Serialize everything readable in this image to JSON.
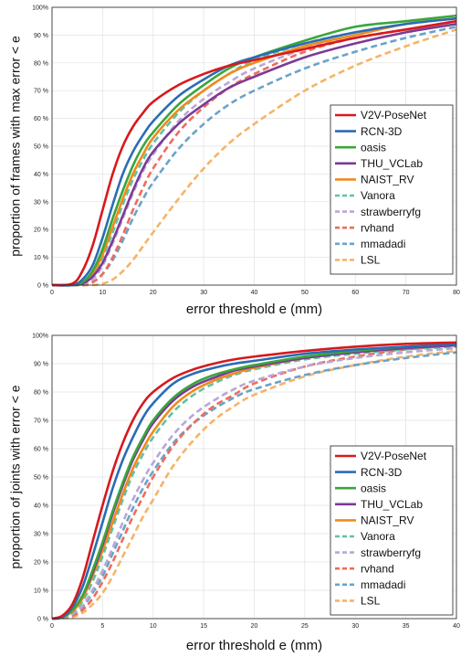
{
  "chart_data": [
    {
      "type": "line",
      "title": "",
      "xlabel": "error threshold e (mm)",
      "ylabel": "proportion of frames with max error < e",
      "xlim": [
        0,
        80
      ],
      "ylim": [
        0,
        100
      ],
      "xticks": [
        "0",
        "10",
        "20",
        "30",
        "40",
        "50",
        "60",
        "70",
        "80"
      ],
      "yticks": [
        "0 %",
        "10 %",
        "20 %",
        "30 %",
        "40 %",
        "50 %",
        "60 %",
        "70 %",
        "80 %",
        "90 %",
        "100%"
      ],
      "grid": true,
      "legend_position": "bottom-right",
      "series": [
        {
          "name": "V2V-PoseNet",
          "color": "#d7191c",
          "dash": "solid",
          "x": [
            0,
            4,
            6,
            8,
            10,
            12,
            14,
            16,
            18,
            20,
            25,
            30,
            35,
            40,
            50,
            60,
            70,
            80
          ],
          "y": [
            0,
            0.5,
            5,
            14,
            27,
            40,
            50,
            57,
            62,
            66,
            72,
            76,
            79,
            81,
            85,
            89,
            92,
            95
          ]
        },
        {
          "name": "RCN-3D",
          "color": "#2b6cb5",
          "dash": "solid",
          "x": [
            0,
            4,
            6,
            8,
            10,
            12,
            14,
            16,
            18,
            20,
            25,
            30,
            35,
            40,
            50,
            60,
            70,
            80
          ],
          "y": [
            0,
            0,
            2,
            7,
            17,
            29,
            40,
            48,
            54,
            59,
            68,
            74,
            79,
            82,
            87,
            91,
            94,
            96
          ]
        },
        {
          "name": "oasis",
          "color": "#3aa63a",
          "dash": "solid",
          "x": [
            0,
            4,
            6,
            8,
            10,
            12,
            14,
            16,
            18,
            20,
            25,
            30,
            35,
            40,
            50,
            60,
            70,
            80
          ],
          "y": [
            0,
            0,
            1,
            5,
            13,
            24,
            34,
            43,
            50,
            55,
            65,
            72,
            78,
            82,
            88,
            93,
            95,
            97
          ]
        },
        {
          "name": "THU_VCLab",
          "color": "#7b3a96",
          "dash": "solid",
          "x": [
            0,
            4,
            6,
            8,
            10,
            12,
            14,
            16,
            18,
            20,
            25,
            30,
            35,
            40,
            50,
            60,
            70,
            80
          ],
          "y": [
            0,
            0,
            0.5,
            3,
            8,
            16,
            25,
            34,
            42,
            48,
            58,
            65,
            71,
            75,
            82,
            87,
            91,
            94
          ]
        },
        {
          "name": "NAIST_RV",
          "color": "#f08a1c",
          "dash": "solid",
          "x": [
            0,
            4,
            6,
            8,
            10,
            12,
            14,
            16,
            18,
            20,
            25,
            30,
            35,
            40,
            50,
            60,
            70,
            80
          ],
          "y": [
            0,
            0,
            0.5,
            4,
            11,
            21,
            31,
            40,
            47,
            53,
            63,
            70,
            76,
            80,
            86,
            90,
            94,
            96
          ]
        },
        {
          "name": "Vanora",
          "color": "#5fc3a6",
          "dash": "dash",
          "x": [
            0,
            4,
            6,
            8,
            10,
            12,
            14,
            16,
            18,
            20,
            25,
            30,
            35,
            40,
            50,
            60,
            70,
            80
          ],
          "y": [
            0,
            0,
            0.5,
            4,
            10,
            19,
            29,
            38,
            45,
            51,
            62,
            70,
            76,
            81,
            87,
            91,
            94,
            96
          ]
        },
        {
          "name": "strawberryfg",
          "color": "#b9a7d6",
          "dash": "dash",
          "x": [
            0,
            4,
            6,
            8,
            10,
            12,
            14,
            16,
            18,
            20,
            25,
            30,
            35,
            40,
            50,
            60,
            70,
            80
          ],
          "y": [
            0,
            0,
            0.3,
            2,
            7,
            15,
            24,
            33,
            41,
            47,
            59,
            67,
            73,
            78,
            85,
            89,
            92,
            95
          ]
        },
        {
          "name": "rvhand",
          "color": "#ef6b5b",
          "dash": "dash",
          "x": [
            0,
            4,
            6,
            8,
            10,
            12,
            14,
            16,
            18,
            20,
            25,
            30,
            35,
            40,
            50,
            60,
            70,
            80
          ],
          "y": [
            0,
            0,
            0,
            1,
            4,
            10,
            18,
            27,
            35,
            42,
            55,
            64,
            71,
            76,
            84,
            89,
            92,
            95
          ]
        },
        {
          "name": "mmadadi",
          "color": "#6aa3c8",
          "dash": "dash",
          "x": [
            0,
            4,
            6,
            8,
            10,
            12,
            14,
            16,
            18,
            20,
            25,
            30,
            35,
            40,
            50,
            60,
            70,
            80
          ],
          "y": [
            0,
            0,
            0,
            1,
            4,
            9,
            16,
            24,
            31,
            37,
            49,
            58,
            65,
            70,
            78,
            84,
            89,
            93
          ]
        },
        {
          "name": "LSL",
          "color": "#f5b466",
          "dash": "dash",
          "x": [
            0,
            4,
            6,
            8,
            10,
            12,
            14,
            16,
            18,
            20,
            25,
            30,
            35,
            40,
            50,
            60,
            70,
            80
          ],
          "y": [
            0,
            0,
            0,
            0,
            0.5,
            2,
            5,
            9,
            14,
            19,
            31,
            42,
            51,
            58,
            70,
            79,
            86,
            92
          ]
        }
      ]
    },
    {
      "type": "line",
      "title": "",
      "xlabel": "error threshold e (mm)",
      "ylabel": "proportion of joints with error < e",
      "xlim": [
        0,
        40
      ],
      "ylim": [
        0,
        100
      ],
      "xticks": [
        "0",
        "5",
        "10",
        "15",
        "20",
        "25",
        "30",
        "35",
        "40"
      ],
      "yticks": [
        "0 %",
        "10 %",
        "20 %",
        "30 %",
        "40 %",
        "50 %",
        "60 %",
        "70 %",
        "80 %",
        "90 %",
        "100%"
      ],
      "grid": true,
      "legend_position": "bottom-right",
      "series": [
        {
          "name": "V2V-PoseNet",
          "color": "#d7191c",
          "dash": "solid",
          "x": [
            0,
            1,
            2,
            3,
            4,
            5,
            6,
            7,
            8,
            9,
            10,
            12,
            14,
            16,
            18,
            20,
            25,
            30,
            35,
            40
          ],
          "y": [
            0,
            1,
            5,
            14,
            27,
            40,
            52,
            62,
            70,
            76,
            80,
            85,
            88,
            90,
            91.5,
            92.5,
            94.5,
            96,
            97,
            97.5
          ]
        },
        {
          "name": "RCN-3D",
          "color": "#2b6cb5",
          "dash": "solid",
          "x": [
            0,
            1,
            2,
            3,
            4,
            5,
            6,
            7,
            8,
            9,
            10,
            12,
            14,
            16,
            18,
            20,
            25,
            30,
            35,
            40
          ],
          "y": [
            0,
            0.5,
            4,
            11,
            22,
            34,
            46,
            56,
            64,
            71,
            76,
            83,
            86.5,
            88.5,
            90,
            91,
            93.5,
            95,
            96,
            97
          ]
        },
        {
          "name": "oasis",
          "color": "#3aa63a",
          "dash": "solid",
          "x": [
            0,
            1,
            2,
            3,
            4,
            5,
            6,
            7,
            8,
            9,
            10,
            12,
            14,
            16,
            18,
            20,
            25,
            30,
            35,
            40
          ],
          "y": [
            0,
            0.5,
            3,
            8,
            17,
            27,
            38,
            48,
            57,
            64,
            70,
            78,
            83,
            86,
            88,
            89.5,
            92.5,
            94.5,
            96,
            97
          ]
        },
        {
          "name": "THU_VCLab",
          "color": "#7b3a96",
          "dash": "solid",
          "x": [
            0,
            1,
            2,
            3,
            4,
            5,
            6,
            7,
            8,
            9,
            10,
            12,
            14,
            16,
            18,
            20,
            25,
            30,
            35,
            40
          ],
          "y": [
            0,
            0.5,
            3,
            8,
            16,
            26,
            37,
            47,
            56,
            63,
            69,
            77,
            82,
            85,
            87.5,
            89,
            92,
            94,
            95.5,
            96.5
          ]
        },
        {
          "name": "NAIST_RV",
          "color": "#f08a1c",
          "dash": "solid",
          "x": [
            0,
            1,
            2,
            3,
            4,
            5,
            6,
            7,
            8,
            9,
            10,
            12,
            14,
            16,
            18,
            20,
            25,
            30,
            35,
            40
          ],
          "y": [
            0,
            0.5,
            2.5,
            7,
            15,
            24,
            34,
            44,
            53,
            60,
            66,
            75,
            80.5,
            84,
            86.5,
            88.5,
            92,
            94,
            95.5,
            96.5
          ]
        },
        {
          "name": "Vanora",
          "color": "#5fc3a6",
          "dash": "dash",
          "x": [
            0,
            1,
            2,
            3,
            4,
            5,
            6,
            7,
            8,
            9,
            10,
            12,
            14,
            16,
            18,
            20,
            25,
            30,
            35,
            40
          ],
          "y": [
            0,
            0.3,
            2,
            6,
            13,
            22,
            32,
            42,
            51,
            58,
            64,
            73,
            79,
            83,
            86,
            88,
            91.5,
            93.5,
            95,
            96
          ]
        },
        {
          "name": "strawberryfg",
          "color": "#b9a7d6",
          "dash": "dash",
          "x": [
            0,
            1,
            2,
            3,
            4,
            5,
            6,
            7,
            8,
            9,
            10,
            12,
            14,
            16,
            18,
            20,
            25,
            30,
            35,
            40
          ],
          "y": [
            0,
            0.3,
            1.5,
            4.5,
            10,
            17,
            25,
            34,
            42,
            49,
            55,
            65,
            72,
            77,
            81,
            84,
            89,
            92,
            94,
            95.5
          ]
        },
        {
          "name": "rvhand",
          "color": "#ef6b5b",
          "dash": "dash",
          "x": [
            0,
            1,
            2,
            3,
            4,
            5,
            6,
            7,
            8,
            9,
            10,
            12,
            14,
            16,
            18,
            20,
            25,
            30,
            35,
            40
          ],
          "y": [
            0,
            0.2,
            1,
            3,
            7,
            13,
            20,
            28,
            36,
            43,
            50,
            61,
            69,
            75,
            79,
            83,
            89,
            92.5,
            95,
            96.5
          ]
        },
        {
          "name": "mmadadi",
          "color": "#6aa3c8",
          "dash": "dash",
          "x": [
            0,
            1,
            2,
            3,
            4,
            5,
            6,
            7,
            8,
            9,
            10,
            12,
            14,
            16,
            18,
            20,
            25,
            30,
            35,
            40
          ],
          "y": [
            0,
            0.3,
            1.5,
            4,
            9,
            15,
            23,
            31,
            39,
            46,
            52,
            62,
            69,
            74,
            78,
            81,
            86,
            89.5,
            92,
            94
          ]
        },
        {
          "name": "LSL",
          "color": "#f5b466",
          "dash": "dash",
          "x": [
            0,
            1,
            2,
            3,
            4,
            5,
            6,
            7,
            8,
            9,
            10,
            12,
            14,
            16,
            18,
            20,
            25,
            30,
            35,
            40
          ],
          "y": [
            0,
            0.1,
            0.5,
            2,
            5,
            9,
            15,
            22,
            29,
            36,
            42,
            54,
            63,
            70,
            75,
            79,
            85.5,
            89.5,
            92.5,
            94.5
          ]
        }
      ]
    }
  ]
}
